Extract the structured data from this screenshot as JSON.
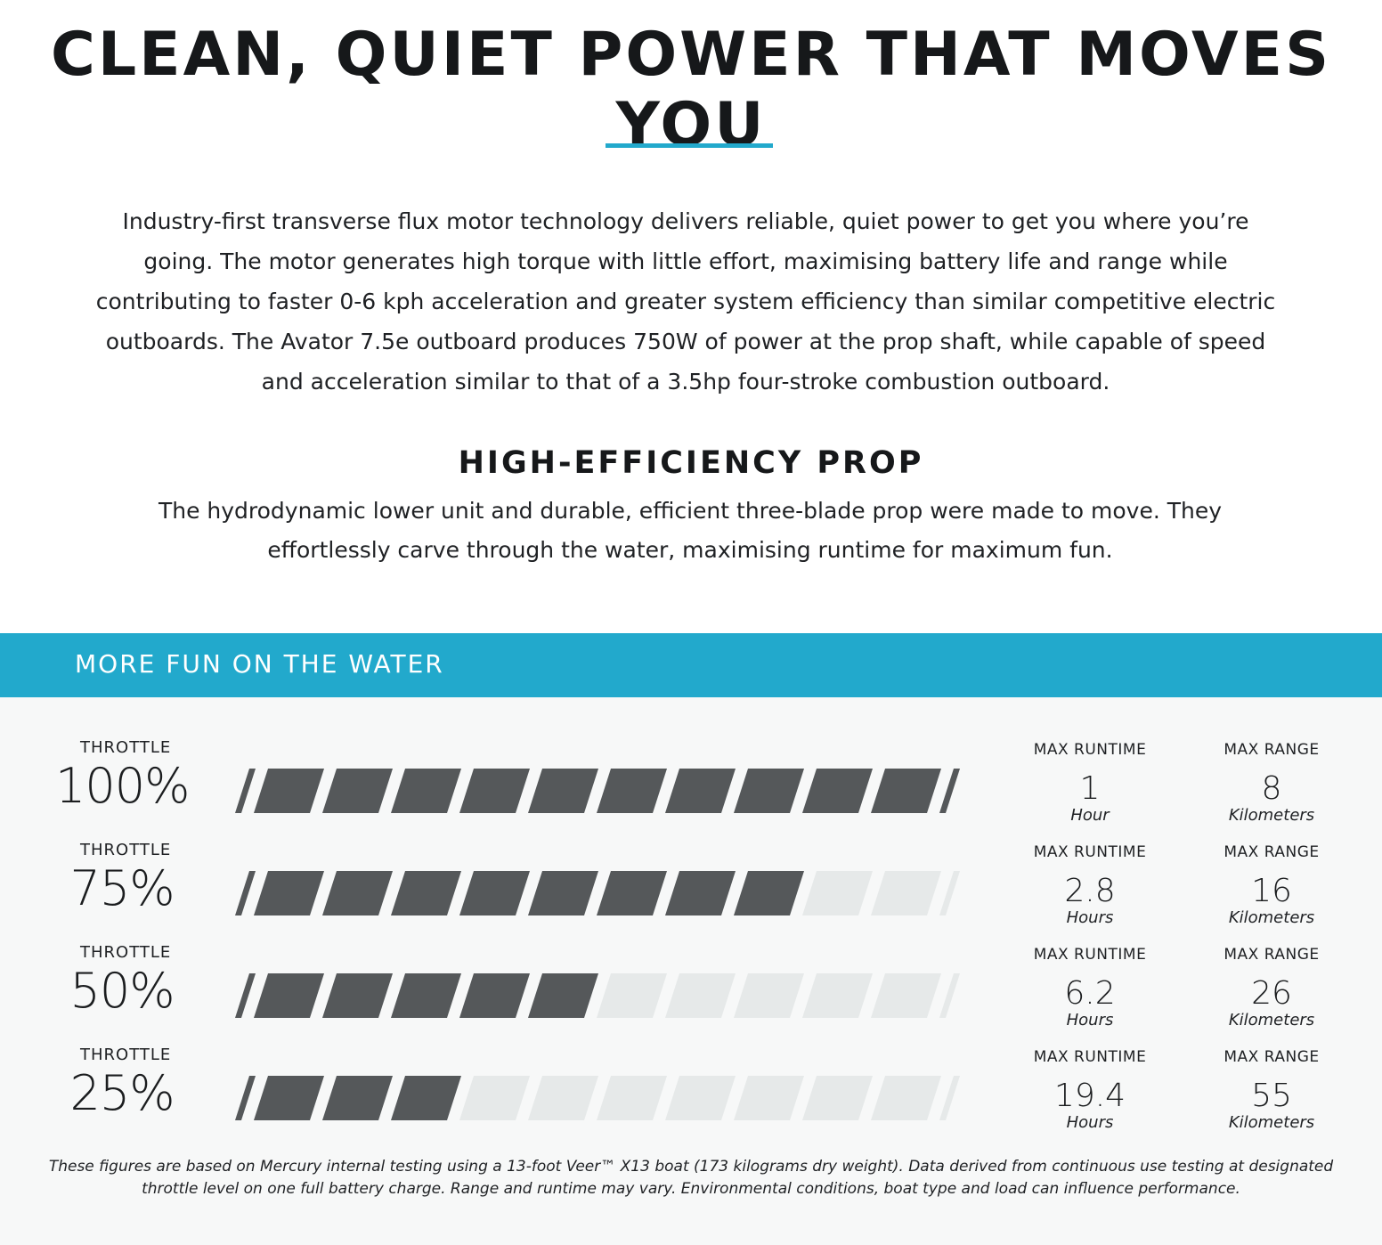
{
  "headline": "CLEAN, QUIET POWER THAT MOVES YOU",
  "intro_paragraph": "Industry-first transverse flux motor technology delivers reliable, quiet power to get you where you’re going. The motor generates high torque with little effort, maximising battery life and range while contributing to faster 0-6 kph acceleration and greater system efficiency than similar competitive electric outboards. The Avator 7.5e outboard produces 750W of power at the prop shaft, while capable of speed and acceleration similar to that of a 3.5hp four-stroke combustion outboard.",
  "prop_section": {
    "title": "HIGH-EFFICIENCY PROP",
    "text": "The hydrodynamic lower unit and durable, efficient three-blade prop were made to move. They effortlessly carve through the water, maximising runtime for maximum fun."
  },
  "performance": {
    "title": "MORE FUN ON THE WATER",
    "rows": [
      {
        "throttle_label": "THROTTLE",
        "throttle": "100%",
        "filled_fraction": 1.0,
        "runtime_label": "MAX RUNTIME",
        "runtime_value": "1",
        "runtime_unit": "Hour",
        "range_label": "MAX RANGE",
        "range_value": "8",
        "range_unit": "Kilometers"
      },
      {
        "throttle_label": "THROTTLE",
        "throttle": "75%",
        "filled_fraction": 0.75,
        "runtime_label": "MAX RUNTIME",
        "runtime_value": "2.8",
        "runtime_unit": "Hours",
        "range_label": "MAX RANGE",
        "range_value": "16",
        "range_unit": "Kilometers"
      },
      {
        "throttle_label": "THROTTLE",
        "throttle": "50%",
        "filled_fraction": 0.5,
        "runtime_label": "MAX RUNTIME",
        "runtime_value": "6.2",
        "runtime_unit": "Hours",
        "range_label": "MAX RANGE",
        "range_value": "26",
        "range_unit": "Kilometers"
      },
      {
        "throttle_label": "THROTTLE",
        "throttle": "25%",
        "filled_fraction": 0.25,
        "runtime_label": "MAX RUNTIME",
        "runtime_value": "19.4",
        "runtime_unit": "Hours",
        "range_label": "MAX RANGE",
        "range_value": "55",
        "range_unit": "Kilometers"
      }
    ]
  },
  "footnote": "These figures are based on Mercury internal testing using a 13-foot Veer™ X13 boat (173 kilograms dry weight). Data derived from continuous use testing at designated throttle level on one full battery charge. Range and runtime may vary. Environmental conditions, boat type and load can influence performance.",
  "colors": {
    "accent": "#22a9cc",
    "bar_filled": "#55585a",
    "bar_empty": "#e6e9e9",
    "text": "#1b1d1f"
  }
}
